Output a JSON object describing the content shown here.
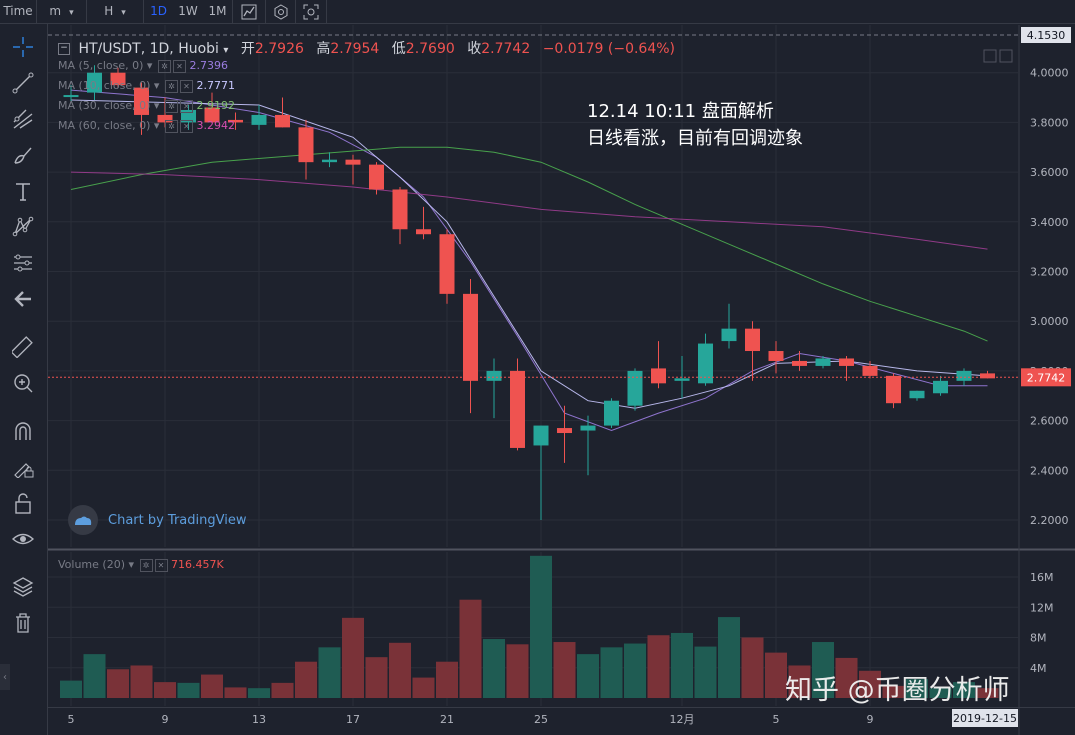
{
  "topbar": {
    "items": [
      "Time",
      "m",
      "H",
      "1D",
      "1W",
      "1M"
    ],
    "active": "1D",
    "icon_names": [
      "chart-style-icon",
      "settings-icon",
      "screenshot-icon"
    ]
  },
  "left_toolbar": {
    "icons": [
      "crosshair-icon",
      "trendline-icon",
      "pitchfork-icon",
      "brush-icon",
      "text-icon",
      "pattern-icon",
      "prediction-icon",
      "back-arrow-icon",
      "ruler-icon",
      "zoom-icon",
      "magnet-icon",
      "lock-drawing-icon",
      "unlock-icon",
      "eye-icon",
      "layers-icon",
      "trash-icon"
    ]
  },
  "header": {
    "symbol": "HT/USDT, 1D, Huobi",
    "open_label": "开",
    "open": "2.7926",
    "high_label": "高",
    "high": "2.7954",
    "low_label": "低",
    "low": "2.7690",
    "close_label": "收",
    "close": "2.7742",
    "change": "−0.0179 (−0.64%)"
  },
  "ma_legend": [
    {
      "label": "MA (5, close, 0)",
      "value": "2.7396",
      "color": "#9b7de0"
    },
    {
      "label": "MA (10, close, 0)",
      "value": "2.7771",
      "color": "#c8c8ff"
    },
    {
      "label": "MA (30, close, 0)",
      "value": "2.9192",
      "color": "#7fbf6e"
    },
    {
      "label": "MA (60, close, 0)",
      "value": "3.2942",
      "color": "#d64fb0"
    }
  ],
  "volume_legend": {
    "label": "Volume (20)",
    "value": "716.457K"
  },
  "annotation": {
    "line1": "12.14 10:11 盘面解析",
    "line2": "日线看涨，目前有回调迹象"
  },
  "branding": {
    "tradingview": "Chart by TradingView"
  },
  "watermark": "知乎 @币圈分析师",
  "colors": {
    "up": "#26a69a",
    "down": "#ef5350",
    "background": "#1e222d",
    "grid": "#2a2e39"
  },
  "chart_data": {
    "type": "candlestick",
    "title": "HT/USDT, 1D, Huobi",
    "price_axis": {
      "ticks": [
        "2.2000",
        "2.4000",
        "2.6000",
        "2.8000",
        "3.0000",
        "3.2000",
        "3.4000",
        "3.6000",
        "3.8000",
        "4.0000"
      ],
      "ylim": [
        2.1,
        4.18
      ],
      "top_label": "4.1530",
      "last_price": "2.7742"
    },
    "volume_axis": {
      "ticks": [
        "4M",
        "8M",
        "12M",
        "16M"
      ],
      "ylim": [
        0,
        19
      ]
    },
    "x_axis": {
      "tick_labels": [
        "5",
        "9",
        "13",
        "17",
        "21",
        "25",
        "12月",
        "5",
        "9"
      ],
      "tick_indices": [
        0,
        4,
        8,
        12,
        16,
        20,
        26,
        30,
        34
      ],
      "cursor_label": "2019-12-15"
    },
    "candles": [
      {
        "o": 3.91,
        "h": 3.95,
        "l": 3.88,
        "c": 3.91
      },
      {
        "o": 3.92,
        "h": 4.03,
        "l": 3.89,
        "c": 4.0
      },
      {
        "o": 4.0,
        "h": 4.02,
        "l": 3.94,
        "c": 3.95
      },
      {
        "o": 3.94,
        "h": 3.96,
        "l": 3.75,
        "c": 3.83
      },
      {
        "o": 3.83,
        "h": 3.9,
        "l": 3.78,
        "c": 3.8
      },
      {
        "o": 3.8,
        "h": 3.87,
        "l": 3.77,
        "c": 3.85
      },
      {
        "o": 3.86,
        "h": 3.92,
        "l": 3.8,
        "c": 3.8
      },
      {
        "o": 3.81,
        "h": 3.84,
        "l": 3.77,
        "c": 3.8
      },
      {
        "o": 3.79,
        "h": 3.87,
        "l": 3.77,
        "c": 3.83
      },
      {
        "o": 3.83,
        "h": 3.9,
        "l": 3.78,
        "c": 3.78
      },
      {
        "o": 3.78,
        "h": 3.81,
        "l": 3.57,
        "c": 3.64
      },
      {
        "o": 3.64,
        "h": 3.68,
        "l": 3.62,
        "c": 3.65
      },
      {
        "o": 3.65,
        "h": 3.67,
        "l": 3.55,
        "c": 3.63
      },
      {
        "o": 3.63,
        "h": 3.64,
        "l": 3.51,
        "c": 3.53
      },
      {
        "o": 3.53,
        "h": 3.54,
        "l": 3.31,
        "c": 3.37
      },
      {
        "o": 3.37,
        "h": 3.46,
        "l": 3.33,
        "c": 3.35
      },
      {
        "o": 3.35,
        "h": 3.37,
        "l": 3.07,
        "c": 3.11
      },
      {
        "o": 3.11,
        "h": 3.17,
        "l": 2.63,
        "c": 2.76
      },
      {
        "o": 2.76,
        "h": 2.85,
        "l": 2.61,
        "c": 2.8
      },
      {
        "o": 2.8,
        "h": 2.85,
        "l": 2.48,
        "c": 2.49
      },
      {
        "o": 2.5,
        "h": 2.58,
        "l": 2.2,
        "c": 2.58
      },
      {
        "o": 2.57,
        "h": 2.66,
        "l": 2.43,
        "c": 2.55
      },
      {
        "o": 2.56,
        "h": 2.62,
        "l": 2.38,
        "c": 2.58
      },
      {
        "o": 2.58,
        "h": 2.69,
        "l": 2.57,
        "c": 2.68
      },
      {
        "o": 2.66,
        "h": 2.81,
        "l": 2.64,
        "c": 2.8
      },
      {
        "o": 2.81,
        "h": 2.92,
        "l": 2.73,
        "c": 2.75
      },
      {
        "o": 2.76,
        "h": 2.86,
        "l": 2.69,
        "c": 2.77
      },
      {
        "o": 2.75,
        "h": 2.95,
        "l": 2.74,
        "c": 2.91
      },
      {
        "o": 2.92,
        "h": 3.07,
        "l": 2.89,
        "c": 2.97
      },
      {
        "o": 2.97,
        "h": 3.0,
        "l": 2.76,
        "c": 2.88
      },
      {
        "o": 2.88,
        "h": 2.92,
        "l": 2.79,
        "c": 2.84
      },
      {
        "o": 2.84,
        "h": 2.88,
        "l": 2.8,
        "c": 2.82
      },
      {
        "o": 2.82,
        "h": 2.86,
        "l": 2.81,
        "c": 2.85
      },
      {
        "o": 2.85,
        "h": 2.86,
        "l": 2.76,
        "c": 2.82
      },
      {
        "o": 2.82,
        "h": 2.84,
        "l": 2.77,
        "c": 2.78
      },
      {
        "o": 2.78,
        "h": 2.79,
        "l": 2.65,
        "c": 2.67
      },
      {
        "o": 2.69,
        "h": 2.72,
        "l": 2.68,
        "c": 2.72
      },
      {
        "o": 2.71,
        "h": 2.78,
        "l": 2.7,
        "c": 2.76
      },
      {
        "o": 2.76,
        "h": 2.81,
        "l": 2.74,
        "c": 2.8
      },
      {
        "o": 2.79,
        "h": 2.8,
        "l": 2.77,
        "c": 2.77
      }
    ],
    "volume": [
      2.3,
      5.8,
      3.8,
      4.3,
      2.1,
      2.0,
      3.1,
      1.4,
      1.3,
      2.0,
      4.8,
      6.7,
      10.6,
      5.4,
      7.3,
      2.7,
      4.8,
      13.0,
      7.8,
      7.1,
      18.8,
      7.4,
      5.8,
      6.7,
      7.2,
      8.3,
      8.6,
      6.8,
      10.7,
      8.0,
      6.0,
      4.3,
      7.4,
      5.3,
      3.6,
      1.6,
      2.5,
      1.3,
      2.1,
      1.3
    ],
    "ma_series": {
      "MA5": [
        [
          0,
          3.93
        ],
        [
          4,
          3.9
        ],
        [
          8,
          3.84
        ],
        [
          11,
          3.76
        ],
        [
          13,
          3.66
        ],
        [
          15,
          3.5
        ],
        [
          17,
          3.24
        ],
        [
          19,
          2.94
        ],
        [
          21,
          2.63
        ],
        [
          23,
          2.56
        ],
        [
          25,
          2.63
        ],
        [
          27,
          2.69
        ],
        [
          29,
          2.8
        ],
        [
          31,
          2.87
        ],
        [
          33,
          2.84
        ],
        [
          35,
          2.79
        ],
        [
          37,
          2.74
        ],
        [
          39,
          2.74
        ]
      ],
      "MA10": [
        [
          0,
          3.89
        ],
        [
          4,
          3.88
        ],
        [
          8,
          3.87
        ],
        [
          12,
          3.74
        ],
        [
          14,
          3.58
        ],
        [
          16,
          3.4
        ],
        [
          18,
          3.1
        ],
        [
          20,
          2.8
        ],
        [
          22,
          2.68
        ],
        [
          24,
          2.65
        ],
        [
          26,
          2.69
        ],
        [
          28,
          2.74
        ],
        [
          30,
          2.83
        ],
        [
          33,
          2.84
        ],
        [
          36,
          2.8
        ],
        [
          39,
          2.78
        ]
      ],
      "MA30": [
        [
          0,
          3.53
        ],
        [
          3,
          3.59
        ],
        [
          6,
          3.64
        ],
        [
          10,
          3.67
        ],
        [
          14,
          3.7
        ],
        [
          16,
          3.7
        ],
        [
          18,
          3.68
        ],
        [
          20,
          3.64
        ],
        [
          22,
          3.56
        ],
        [
          24,
          3.47
        ],
        [
          26,
          3.39
        ],
        [
          28,
          3.31
        ],
        [
          30,
          3.23
        ],
        [
          32,
          3.15
        ],
        [
          34,
          3.08
        ],
        [
          36,
          3.02
        ],
        [
          38,
          2.96
        ],
        [
          39,
          2.92
        ]
      ],
      "MA60": [
        [
          0,
          3.6
        ],
        [
          4,
          3.59
        ],
        [
          8,
          3.57
        ],
        [
          12,
          3.54
        ],
        [
          16,
          3.5
        ],
        [
          20,
          3.45
        ],
        [
          24,
          3.42
        ],
        [
          28,
          3.4
        ],
        [
          32,
          3.38
        ],
        [
          36,
          3.33
        ],
        [
          39,
          3.29
        ]
      ]
    }
  }
}
